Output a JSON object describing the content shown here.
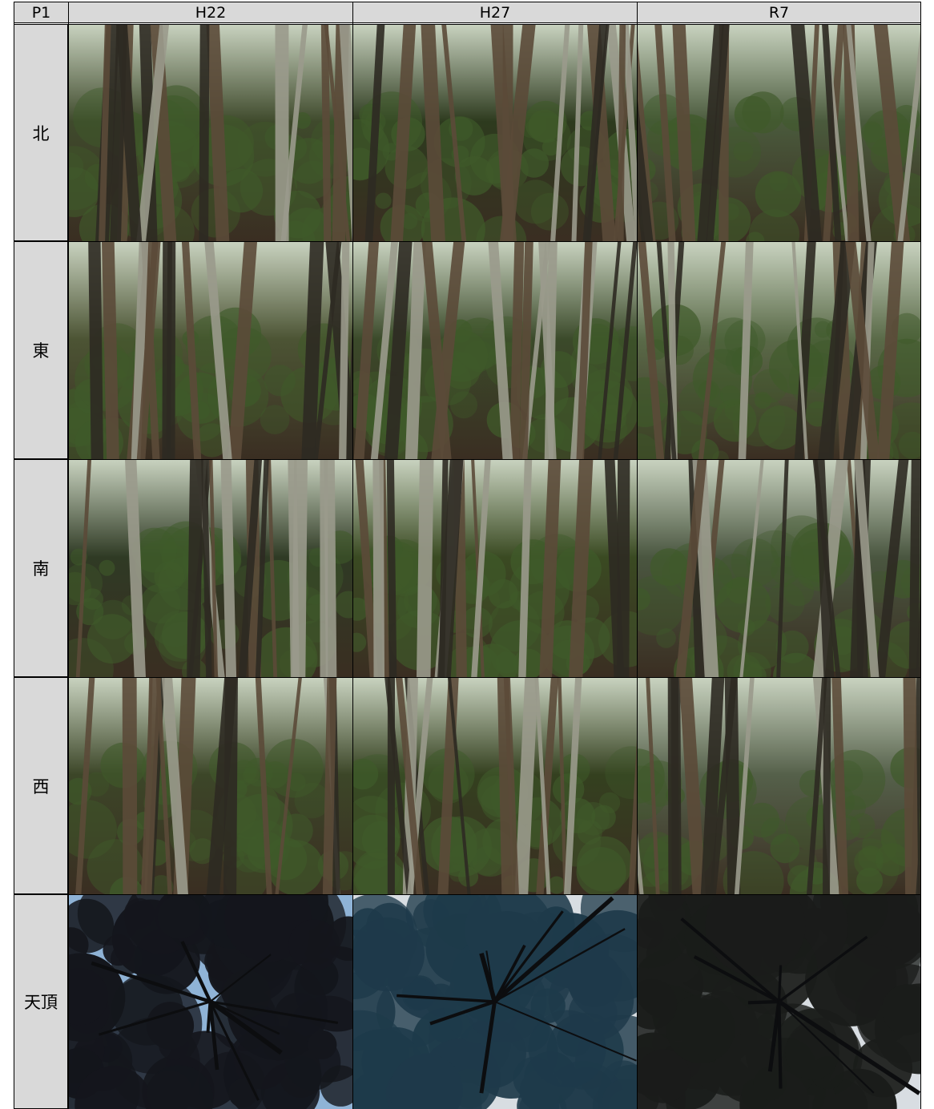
{
  "table": {
    "corner_label": "P1",
    "columns": [
      "H22",
      "H27",
      "R7"
    ],
    "rows": [
      {
        "label": "北",
        "tones": [
          "#3f4a2c",
          "#2d3a1e",
          "#4a5a3c"
        ]
      },
      {
        "label": "東",
        "tones": [
          "#4c5434",
          "#3b4a2a",
          "#5a6a48"
        ]
      },
      {
        "label": "南",
        "tones": [
          "#2f3a24",
          "#3a4a22",
          "#4a5640"
        ]
      },
      {
        "label": "西",
        "tones": [
          "#3c4628",
          "#34401f",
          "#55604a"
        ]
      },
      {
        "label": "天頂",
        "tones": [
          "#14161c",
          "#1e3a4a",
          "#1a1c1a"
        ]
      }
    ]
  },
  "colors": {
    "header_bg": "#d9d9d9",
    "border": "#000000",
    "page_bg": "#ffffff"
  }
}
